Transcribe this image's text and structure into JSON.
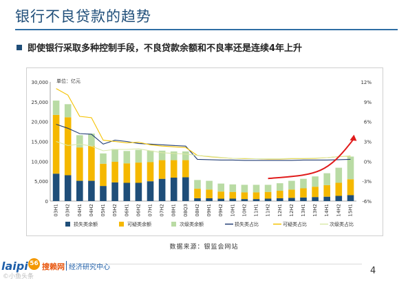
{
  "slide": {
    "title": "银行不良贷款的趋势",
    "subtitle": "即使银行采取多种控制手段，不良贷款余额和不良率还是连续4年上升",
    "source": "数据来源：银监会网站",
    "page_number": "4",
    "logo_word": "laipi",
    "logo_badge": "56",
    "logo_brand": "搜赖网",
    "logo_dept": "经济研究中心",
    "watermark": "©小鱼头条"
  },
  "colors": {
    "loss": "#1f4e79",
    "doubtful": "#f5b800",
    "substandard": "#b9dba4",
    "loss_ratio": "#1f3b73",
    "doubtful_ratio": "#f5c200",
    "substandard_ratio": "#d9e8a8",
    "trend_arrow": "#e01b1b",
    "title_blue": "#1f4e79"
  },
  "chart_data": {
    "type": "bar",
    "stacked": true,
    "unit_label": "单位：亿元",
    "categories": [
      "03H1",
      "03H2",
      "04H1",
      "04H2",
      "05H1",
      "05H2",
      "06H1",
      "06H2",
      "07H1",
      "07H2",
      "08H1",
      "08Q3",
      "08H2",
      "09H1",
      "09H2",
      "10H1",
      "10H2",
      "11H1",
      "11H2",
      "12H1",
      "12H2",
      "13H1",
      "13H2",
      "14H1",
      "14H2",
      "15H1"
    ],
    "ylim_left": [
      0,
      30000
    ],
    "yticks_left": [
      "0",
      "5,000",
      "10,000",
      "15,000",
      "20,000",
      "25,000",
      "30,000"
    ],
    "ylim_right": [
      -6,
      12
    ],
    "yticks_right": [
      "-6%",
      "-3%",
      "0%",
      "3%",
      "6%",
      "9%",
      "12%"
    ],
    "grid": false,
    "legend_position": "bottom",
    "series": [
      {
        "name": "损失类余额",
        "kind": "bar",
        "color_key": "loss",
        "values": [
          6900,
          6500,
          5100,
          5100,
          3800,
          4700,
          4600,
          4600,
          5000,
          5600,
          5900,
          6000,
          700,
          700,
          600,
          600,
          500,
          500,
          600,
          700,
          800,
          900,
          1000,
          1100,
          1300,
          1500
        ]
      },
      {
        "name": "可疑类余额",
        "kind": "bar",
        "color_key": "doubtful",
        "values": [
          14800,
          14600,
          8400,
          8800,
          5600,
          5200,
          4900,
          5100,
          4800,
          4700,
          4400,
          4300,
          2400,
          2200,
          1800,
          1700,
          1700,
          1700,
          1700,
          1900,
          2100,
          2300,
          2600,
          2900,
          3300,
          4000
        ]
      },
      {
        "name": "次级类余额",
        "kind": "bar",
        "color_key": "substandard",
        "values": [
          3600,
          3300,
          3100,
          3100,
          2600,
          3200,
          3100,
          3200,
          2900,
          2400,
          2200,
          2200,
          2200,
          2200,
          2000,
          1900,
          1900,
          1900,
          1800,
          1900,
          2200,
          2400,
          2600,
          3000,
          3800,
          5700
        ]
      },
      {
        "name": "损失类占比",
        "kind": "line",
        "axis": "right",
        "color_key": "loss_ratio",
        "values": [
          5.6,
          5.0,
          4.2,
          4.1,
          2.6,
          3.2,
          3.0,
          2.7,
          2.6,
          2.5,
          2.4,
          2.3,
          0.3,
          0.25,
          0.2,
          0.2,
          0.15,
          0.15,
          0.15,
          0.15,
          0.15,
          0.2,
          0.2,
          0.2,
          0.25,
          0.3
        ]
      },
      {
        "name": "可疑类占比",
        "kind": "line",
        "axis": "right",
        "color_key": "doubtful_ratio",
        "values": [
          11.0,
          10.0,
          6.8,
          6.6,
          3.2,
          3.0,
          2.8,
          2.9,
          2.5,
          2.3,
          2.2,
          2.1,
          0.9,
          0.7,
          0.55,
          0.45,
          0.4,
          0.4,
          0.35,
          0.35,
          0.4,
          0.4,
          0.45,
          0.55,
          0.7,
          0.8
        ]
      },
      {
        "name": "次级类占比",
        "kind": "line",
        "axis": "right",
        "color_key": "substandard_ratio",
        "values": [
          3.0,
          2.4,
          2.6,
          2.3,
          1.6,
          1.8,
          1.8,
          1.9,
          1.6,
          1.3,
          1.2,
          1.1,
          0.9,
          0.75,
          0.6,
          0.45,
          0.45,
          0.4,
          0.4,
          0.4,
          0.45,
          0.45,
          0.5,
          0.55,
          0.7,
          0.85
        ]
      }
    ]
  }
}
